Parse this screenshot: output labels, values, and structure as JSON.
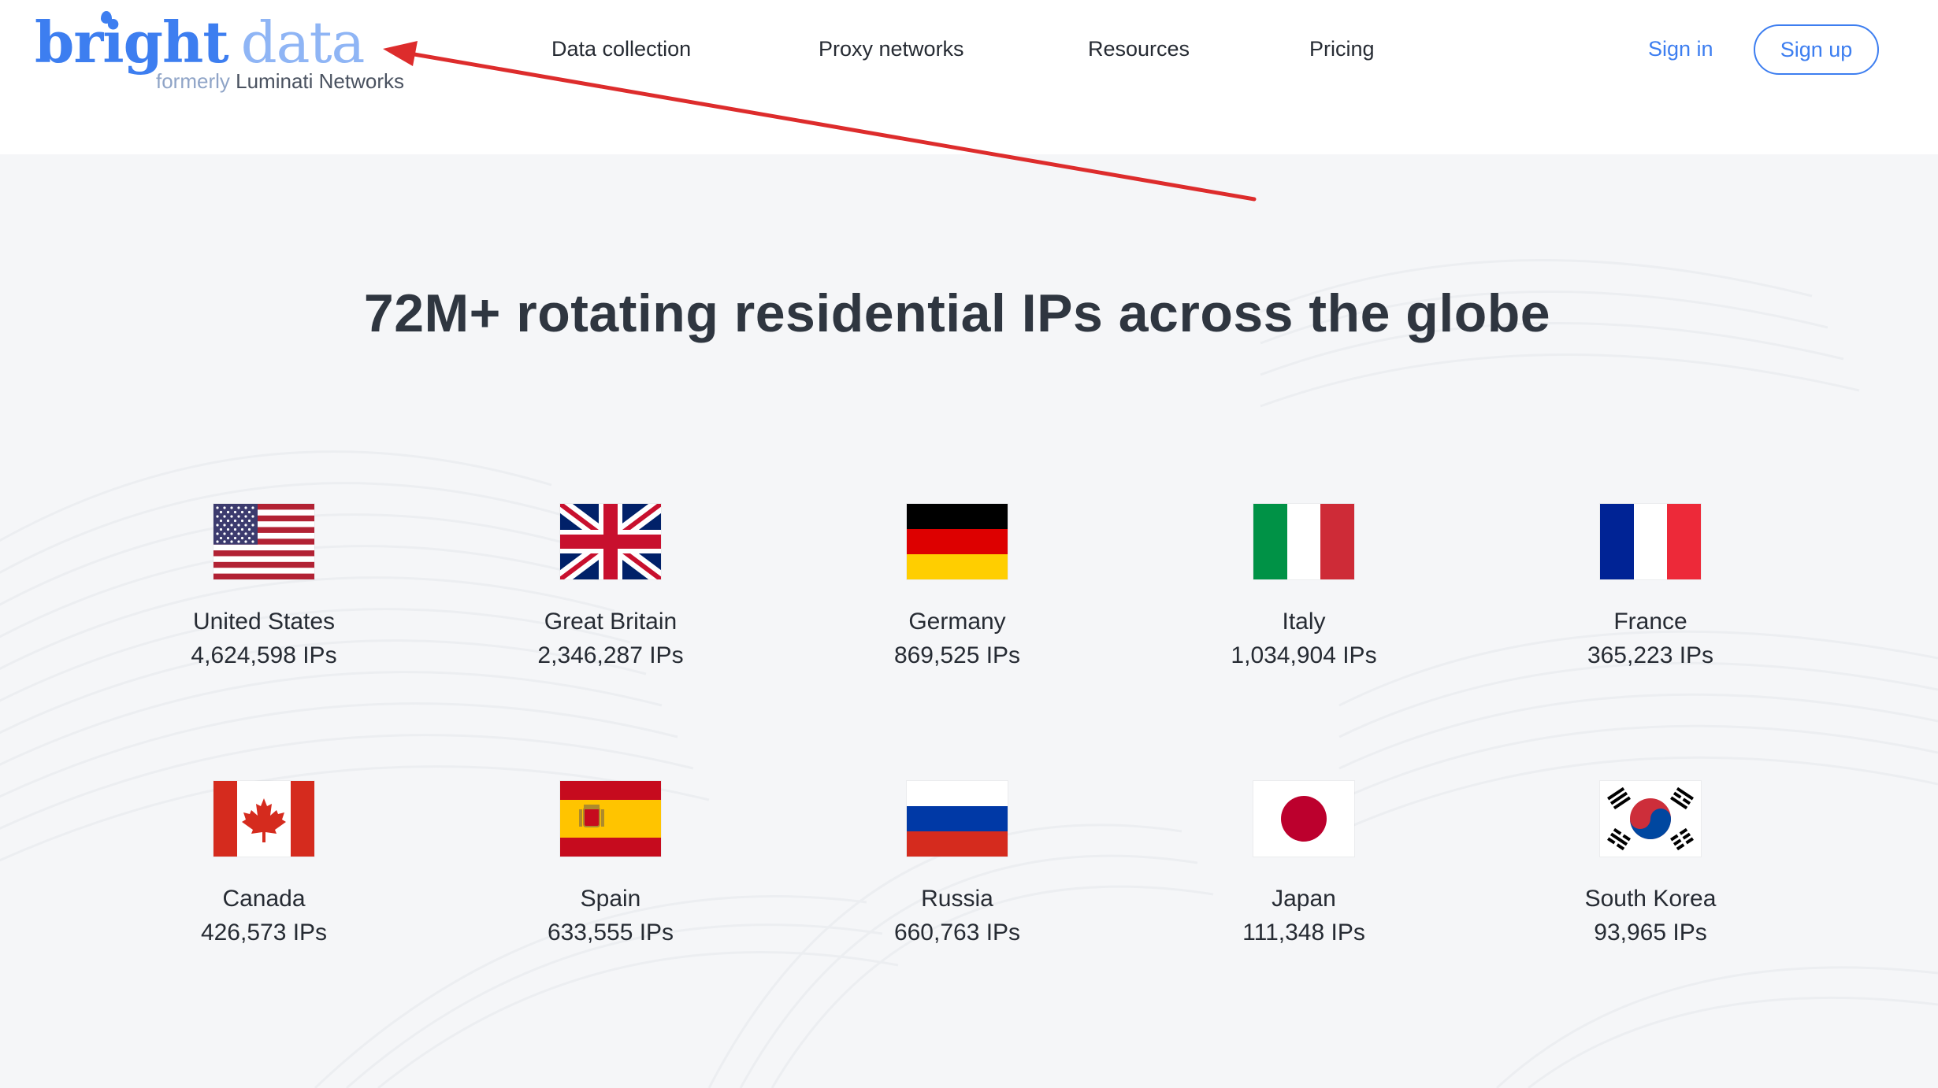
{
  "header": {
    "logo": {
      "brand_1": "bright",
      "brand_2": "data",
      "sub_1": "formerly",
      "sub_2": "Luminati Networks"
    },
    "nav": [
      {
        "label": "Data collection"
      },
      {
        "label": "Proxy networks"
      },
      {
        "label": "Resources"
      },
      {
        "label": "Pricing"
      }
    ],
    "sign_in": "Sign in",
    "sign_up": "Sign up"
  },
  "main": {
    "headline": "72M+ rotating residential IPs across the globe",
    "countries": [
      {
        "name": "United States",
        "ips": "4,624,598 IPs",
        "flag": "us-flag"
      },
      {
        "name": "Great Britain",
        "ips": "2,346,287 IPs",
        "flag": "gb-flag"
      },
      {
        "name": "Germany",
        "ips": "869,525 IPs",
        "flag": "de-flag"
      },
      {
        "name": "Italy",
        "ips": "1,034,904 IPs",
        "flag": "it-flag"
      },
      {
        "name": "France",
        "ips": "365,223 IPs",
        "flag": "fr-flag"
      },
      {
        "name": "Canada",
        "ips": "426,573 IPs",
        "flag": "ca-flag"
      },
      {
        "name": "Spain",
        "ips": "633,555 IPs",
        "flag": "es-flag"
      },
      {
        "name": "Russia",
        "ips": "660,763 IPs",
        "flag": "ru-flag"
      },
      {
        "name": "Japan",
        "ips": "111,348 IPs",
        "flag": "jp-flag"
      },
      {
        "name": "South Korea",
        "ips": "93,965 IPs",
        "flag": "kr-flag"
      }
    ]
  },
  "colors": {
    "brand_blue": "#3d7ef0",
    "brand_light_blue": "#8fb5f5",
    "annotation_red": "#dd2c2c",
    "page_background": "#f5f6f8"
  }
}
